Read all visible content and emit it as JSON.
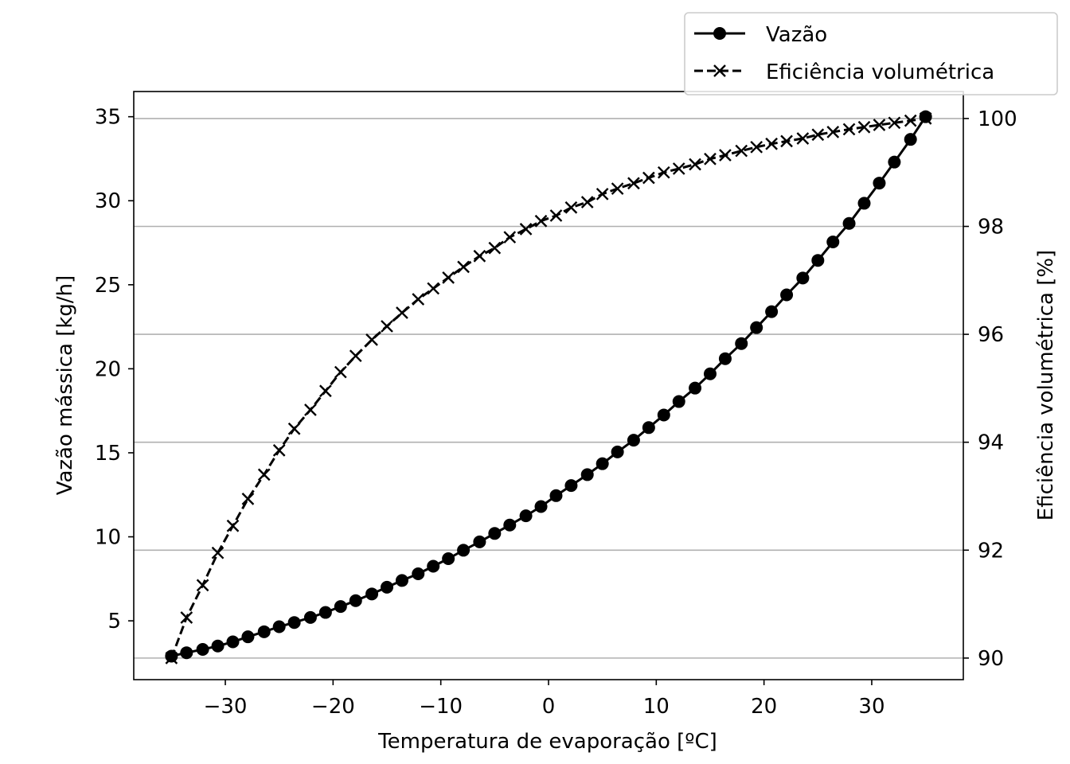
{
  "chart_data": {
    "type": "line",
    "xlabel": "Temperatura de evaporação [ºC]",
    "ylabel_left": "Vazão mássica [kg/h]",
    "ylabel_right": "Eficiência volumétrica [%]",
    "xlim": [
      -38.5,
      38.5
    ],
    "ylim_left": [
      1.5,
      36.5
    ],
    "ylim_right": [
      89.6,
      100.5
    ],
    "xticks": [
      -30,
      -20,
      -10,
      0,
      10,
      20,
      30
    ],
    "xtick_labels": [
      "−30",
      "−20",
      "−10",
      "0",
      "10",
      "20",
      "30"
    ],
    "yticks_left": [
      5,
      10,
      15,
      20,
      25,
      30,
      35
    ],
    "ytick_labels_left": [
      "5",
      "10",
      "15",
      "20",
      "25",
      "30",
      "35"
    ],
    "yticks_right": [
      90,
      92,
      94,
      96,
      98,
      100
    ],
    "ytick_labels_right": [
      "90",
      "92",
      "94",
      "96",
      "98",
      "100"
    ],
    "grid": "horizontal, right axis",
    "legend_position": "top-right, outside",
    "x": [
      -35.0,
      -33.6,
      -32.1,
      -30.7,
      -29.3,
      -27.9,
      -26.4,
      -25.0,
      -23.6,
      -22.1,
      -20.7,
      -19.3,
      -17.9,
      -16.4,
      -15.0,
      -13.6,
      -12.1,
      -10.7,
      -9.3,
      -7.9,
      -6.4,
      -5.0,
      -3.6,
      -2.1,
      -0.7,
      0.7,
      2.1,
      3.6,
      5.0,
      6.4,
      7.9,
      9.3,
      10.7,
      12.1,
      13.6,
      15.0,
      16.4,
      17.9,
      19.3,
      20.7,
      22.1,
      23.6,
      25.0,
      26.4,
      27.9,
      29.3,
      30.7,
      32.1,
      33.6,
      35.0
    ],
    "series": [
      {
        "name": "Vazão",
        "axis": "left",
        "marker": "circle",
        "linestyle": "solid",
        "values": [
          2.9,
          3.1,
          3.3,
          3.5,
          3.75,
          4.05,
          4.35,
          4.65,
          4.9,
          5.2,
          5.5,
          5.85,
          6.2,
          6.6,
          7.0,
          7.4,
          7.8,
          8.25,
          8.7,
          9.2,
          9.7,
          10.2,
          10.7,
          11.25,
          11.8,
          12.45,
          13.05,
          13.7,
          14.35,
          15.05,
          15.75,
          16.5,
          17.25,
          18.05,
          18.85,
          19.7,
          20.6,
          21.5,
          22.45,
          23.4,
          24.4,
          25.4,
          26.45,
          27.55,
          28.65,
          29.85,
          31.05,
          32.3,
          33.65,
          35.0
        ]
      },
      {
        "name": "Eficiência volumétrica",
        "axis": "right",
        "marker": "x",
        "linestyle": "dashed",
        "values": [
          90.0,
          90.75,
          91.35,
          91.95,
          92.45,
          92.95,
          93.4,
          93.85,
          94.25,
          94.6,
          94.95,
          95.3,
          95.6,
          95.9,
          96.15,
          96.4,
          96.65,
          96.85,
          97.05,
          97.25,
          97.45,
          97.6,
          97.8,
          97.95,
          98.1,
          98.2,
          98.35,
          98.45,
          98.6,
          98.7,
          98.8,
          98.9,
          99.0,
          99.07,
          99.15,
          99.25,
          99.32,
          99.4,
          99.47,
          99.53,
          99.58,
          99.63,
          99.7,
          99.75,
          99.8,
          99.84,
          99.88,
          99.92,
          99.96,
          100.0
        ]
      }
    ]
  }
}
